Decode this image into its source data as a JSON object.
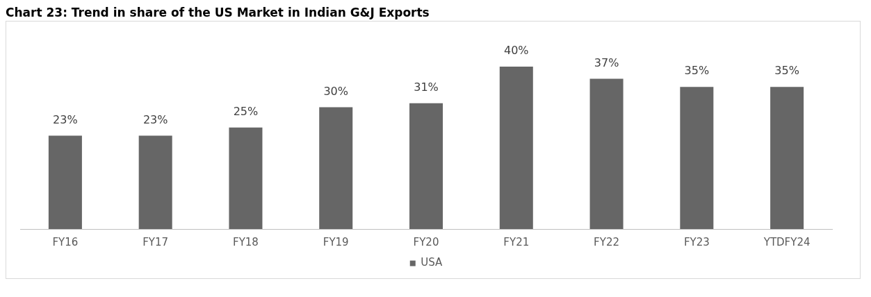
{
  "chart_data": {
    "type": "bar",
    "title": "Chart 23: Trend in share of the US Market in Indian G&J Exports",
    "categories": [
      "FY16",
      "FY17",
      "FY18",
      "FY19",
      "FY20",
      "FY21",
      "FY22",
      "FY23",
      "YTDFY24"
    ],
    "series": [
      {
        "name": "USA",
        "color": "#666666",
        "values": [
          23,
          23,
          25,
          30,
          31,
          40,
          37,
          35,
          35
        ],
        "value_labels": [
          "23%",
          "23%",
          "25%",
          "30%",
          "31%",
          "40%",
          "37%",
          "35%",
          "35%"
        ]
      }
    ],
    "tick_labels": "x",
    "grid": false,
    "legend": "bottom"
  }
}
